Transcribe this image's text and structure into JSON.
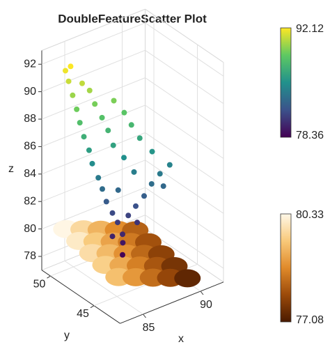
{
  "chart_data": {
    "type": "scatter3d",
    "title": "DoubleFeatureScatter Plot",
    "x_label": "x",
    "y_label": "y",
    "z_label": "z",
    "xlim": [
      83,
      92
    ],
    "ylim": [
      42,
      51
    ],
    "zlim": [
      77,
      93
    ],
    "xticks": [
      85,
      90
    ],
    "yticks": [
      45,
      50
    ],
    "zticks": [
      78,
      80,
      82,
      84,
      86,
      88,
      90,
      92
    ],
    "grid": true,
    "series": [
      {
        "clim": [
          77.08,
          80.33
        ],
        "colormap": [
          "#4a1a00",
          "#9b4a0a",
          "#e08a2a",
          "#f8c97a",
          "#fff8e8"
        ],
        "x": [
          84,
          85.5,
          87,
          88.5,
          90,
          84,
          85.5,
          87,
          88.5,
          90,
          84,
          85.5,
          87,
          88.5,
          90,
          84,
          85.5,
          87,
          88.5,
          90,
          84,
          85.5,
          87,
          88.5,
          90
        ],
        "y": [
          49.5,
          49.5,
          49.5,
          49.5,
          49.5,
          48,
          48,
          48,
          48,
          48,
          46.5,
          46.5,
          46.5,
          46.5,
          46.5,
          45,
          45,
          45,
          45,
          45,
          43.5,
          43.5,
          43.5,
          43.5,
          43.5
        ],
        "z": [
          80.3,
          79.78,
          79.25,
          78.73,
          78.2,
          80.08,
          79.55,
          79.03,
          78.5,
          77.98,
          79.85,
          79.33,
          78.8,
          78.28,
          77.75,
          79.63,
          79.1,
          78.58,
          78.05,
          77.53,
          79.4,
          78.88,
          78.35,
          77.83,
          77.3
        ]
      },
      {
        "clim": [
          78.36,
          92.12
        ],
        "colormap": [
          "#440154",
          "#3b528b",
          "#21918c",
          "#5ec962",
          "#fde725"
        ],
        "x": [
          87,
          87.1,
          87,
          86.8,
          86.5,
          87.5,
          88,
          86.2,
          88.5,
          86,
          87,
          89,
          85.8,
          88,
          89.5,
          85.5,
          87.5,
          89.2,
          85.3,
          86.8,
          88.5,
          85,
          86.5,
          88,
          84.8,
          86.2,
          87.6,
          84.6,
          85.8,
          87,
          84.4,
          85.5,
          84.2,
          85,
          84,
          84.3,
          89.8,
          90.2,
          86.5,
          88.2
        ],
        "y": [
          47,
          47.1,
          47,
          47.3,
          47.5,
          47,
          46.8,
          47.8,
          46.5,
          48,
          47.5,
          46.3,
          48.2,
          47,
          46,
          48.5,
          47.5,
          46.5,
          48.6,
          47.8,
          47,
          48.8,
          48,
          47.3,
          49,
          48.3,
          47.6,
          49.1,
          48.6,
          48,
          49.3,
          48.8,
          49.5,
          49,
          49.6,
          49.4,
          46,
          45.8,
          47.5,
          46.9
        ],
        "z": [
          78.5,
          79.3,
          80,
          80.8,
          81.5,
          81.2,
          81.8,
          82.3,
          82.5,
          83.2,
          83,
          83.3,
          84,
          84.2,
          84,
          85,
          85.2,
          85.5,
          86,
          86.2,
          86.5,
          87,
          87.3,
          87.5,
          88,
          88.2,
          88.4,
          89,
          89.2,
          89.3,
          90,
          90.2,
          91,
          90.8,
          91.8,
          92.1,
          83,
          84.5,
          79.8,
          80.5
        ]
      }
    ]
  }
}
